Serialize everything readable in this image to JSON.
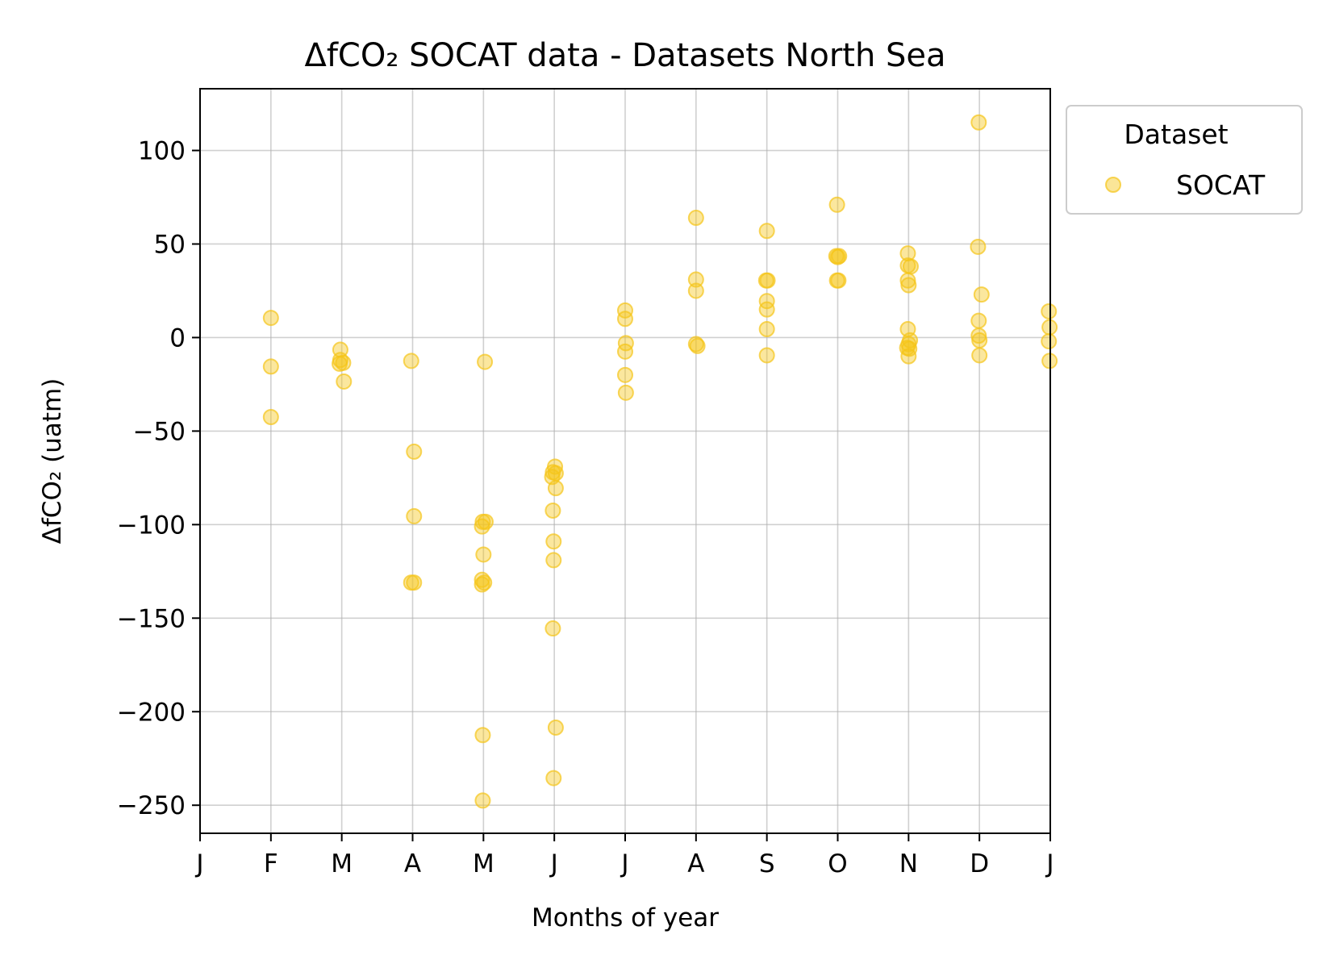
{
  "chart_data": {
    "type": "scatter",
    "title": "ΔfCO₂ SOCAT data - Datasets North Sea",
    "xlabel": "Months of year",
    "ylabel": "ΔfCO₂ (uatm)",
    "xlim": [
      0,
      12
    ],
    "ylim": [
      -265,
      133
    ],
    "x_ticks": [
      {
        "value": 0,
        "label": "J"
      },
      {
        "value": 1,
        "label": "F"
      },
      {
        "value": 2,
        "label": "M"
      },
      {
        "value": 3,
        "label": "A"
      },
      {
        "value": 4,
        "label": "M"
      },
      {
        "value": 5,
        "label": "J"
      },
      {
        "value": 6,
        "label": "J"
      },
      {
        "value": 7,
        "label": "A"
      },
      {
        "value": 8,
        "label": "S"
      },
      {
        "value": 9,
        "label": "O"
      },
      {
        "value": 10,
        "label": "N"
      },
      {
        "value": 11,
        "label": "D"
      },
      {
        "value": 12,
        "label": "J"
      }
    ],
    "y_ticks": [
      {
        "value": 100,
        "label": "100"
      },
      {
        "value": 50,
        "label": "50"
      },
      {
        "value": 0,
        "label": "0"
      },
      {
        "value": -50,
        "label": "−50"
      },
      {
        "value": -100,
        "label": "−100"
      },
      {
        "value": -150,
        "label": "−150"
      },
      {
        "value": -200,
        "label": "−200"
      },
      {
        "value": -250,
        "label": "−250"
      }
    ],
    "grid": true,
    "legend": {
      "title": "Dataset",
      "placement": "outside-top-right"
    },
    "series": [
      {
        "name": "SOCAT",
        "color": "#f5c518",
        "points": [
          [
            1.0,
            10.5
          ],
          [
            1.0,
            -15.5
          ],
          [
            1.0,
            -42.5
          ],
          [
            1.98,
            -6.5
          ],
          [
            1.98,
            -12
          ],
          [
            2.02,
            -13.5
          ],
          [
            1.97,
            -14
          ],
          [
            2.03,
            -23.5
          ],
          [
            2.98,
            -12.5
          ],
          [
            3.02,
            -61
          ],
          [
            3.02,
            -95.5
          ],
          [
            2.98,
            -131
          ],
          [
            3.02,
            -131
          ],
          [
            4.02,
            -13
          ],
          [
            3.99,
            -98.5
          ],
          [
            4.03,
            -98.5
          ],
          [
            3.98,
            -101
          ],
          [
            4.0,
            -116
          ],
          [
            3.98,
            -129.5
          ],
          [
            4.01,
            -131
          ],
          [
            3.98,
            -132
          ],
          [
            3.99,
            -212.5
          ],
          [
            3.99,
            -247.5
          ],
          [
            5.01,
            -69
          ],
          [
            4.98,
            -72
          ],
          [
            5.02,
            -72.5
          ],
          [
            4.97,
            -74.5
          ],
          [
            5.02,
            -80.5
          ],
          [
            4.98,
            -92.5
          ],
          [
            4.99,
            -109
          ],
          [
            4.99,
            -119
          ],
          [
            4.98,
            -155.5
          ],
          [
            5.02,
            -208.5
          ],
          [
            4.99,
            -235.5
          ],
          [
            6.0,
            14.5
          ],
          [
            6.0,
            10
          ],
          [
            6.01,
            -3
          ],
          [
            6.0,
            -7.5
          ],
          [
            6.0,
            -20
          ],
          [
            6.01,
            -29.5
          ],
          [
            7.0,
            64
          ],
          [
            7.0,
            31
          ],
          [
            7.0,
            25
          ],
          [
            7.0,
            -3.5
          ],
          [
            7.02,
            -4.5
          ],
          [
            8.0,
            57
          ],
          [
            7.99,
            30.5
          ],
          [
            8.01,
            30.5
          ],
          [
            8.0,
            19.5
          ],
          [
            8.0,
            15
          ],
          [
            8.0,
            4.5
          ],
          [
            8.0,
            -9.5
          ],
          [
            8.99,
            71
          ],
          [
            8.98,
            43.5
          ],
          [
            9.02,
            43.5
          ],
          [
            9.0,
            43
          ],
          [
            8.99,
            30.5
          ],
          [
            9.01,
            30.5
          ],
          [
            9.99,
            45
          ],
          [
            9.99,
            38.5
          ],
          [
            10.03,
            38
          ],
          [
            9.99,
            30.5
          ],
          [
            10.0,
            28
          ],
          [
            9.99,
            4.5
          ],
          [
            10.02,
            -1.5
          ],
          [
            10.0,
            -3.5
          ],
          [
            9.98,
            -5.5
          ],
          [
            10.01,
            -6
          ],
          [
            10.0,
            -10
          ],
          [
            10.99,
            115
          ],
          [
            10.98,
            48.5
          ],
          [
            11.03,
            23
          ],
          [
            10.99,
            9
          ],
          [
            10.99,
            1
          ],
          [
            11.0,
            -1.5
          ],
          [
            11.0,
            -9.5
          ],
          [
            11.98,
            14
          ],
          [
            11.99,
            5.5
          ],
          [
            11.98,
            -2
          ],
          [
            11.99,
            -12.5
          ]
        ]
      }
    ]
  }
}
